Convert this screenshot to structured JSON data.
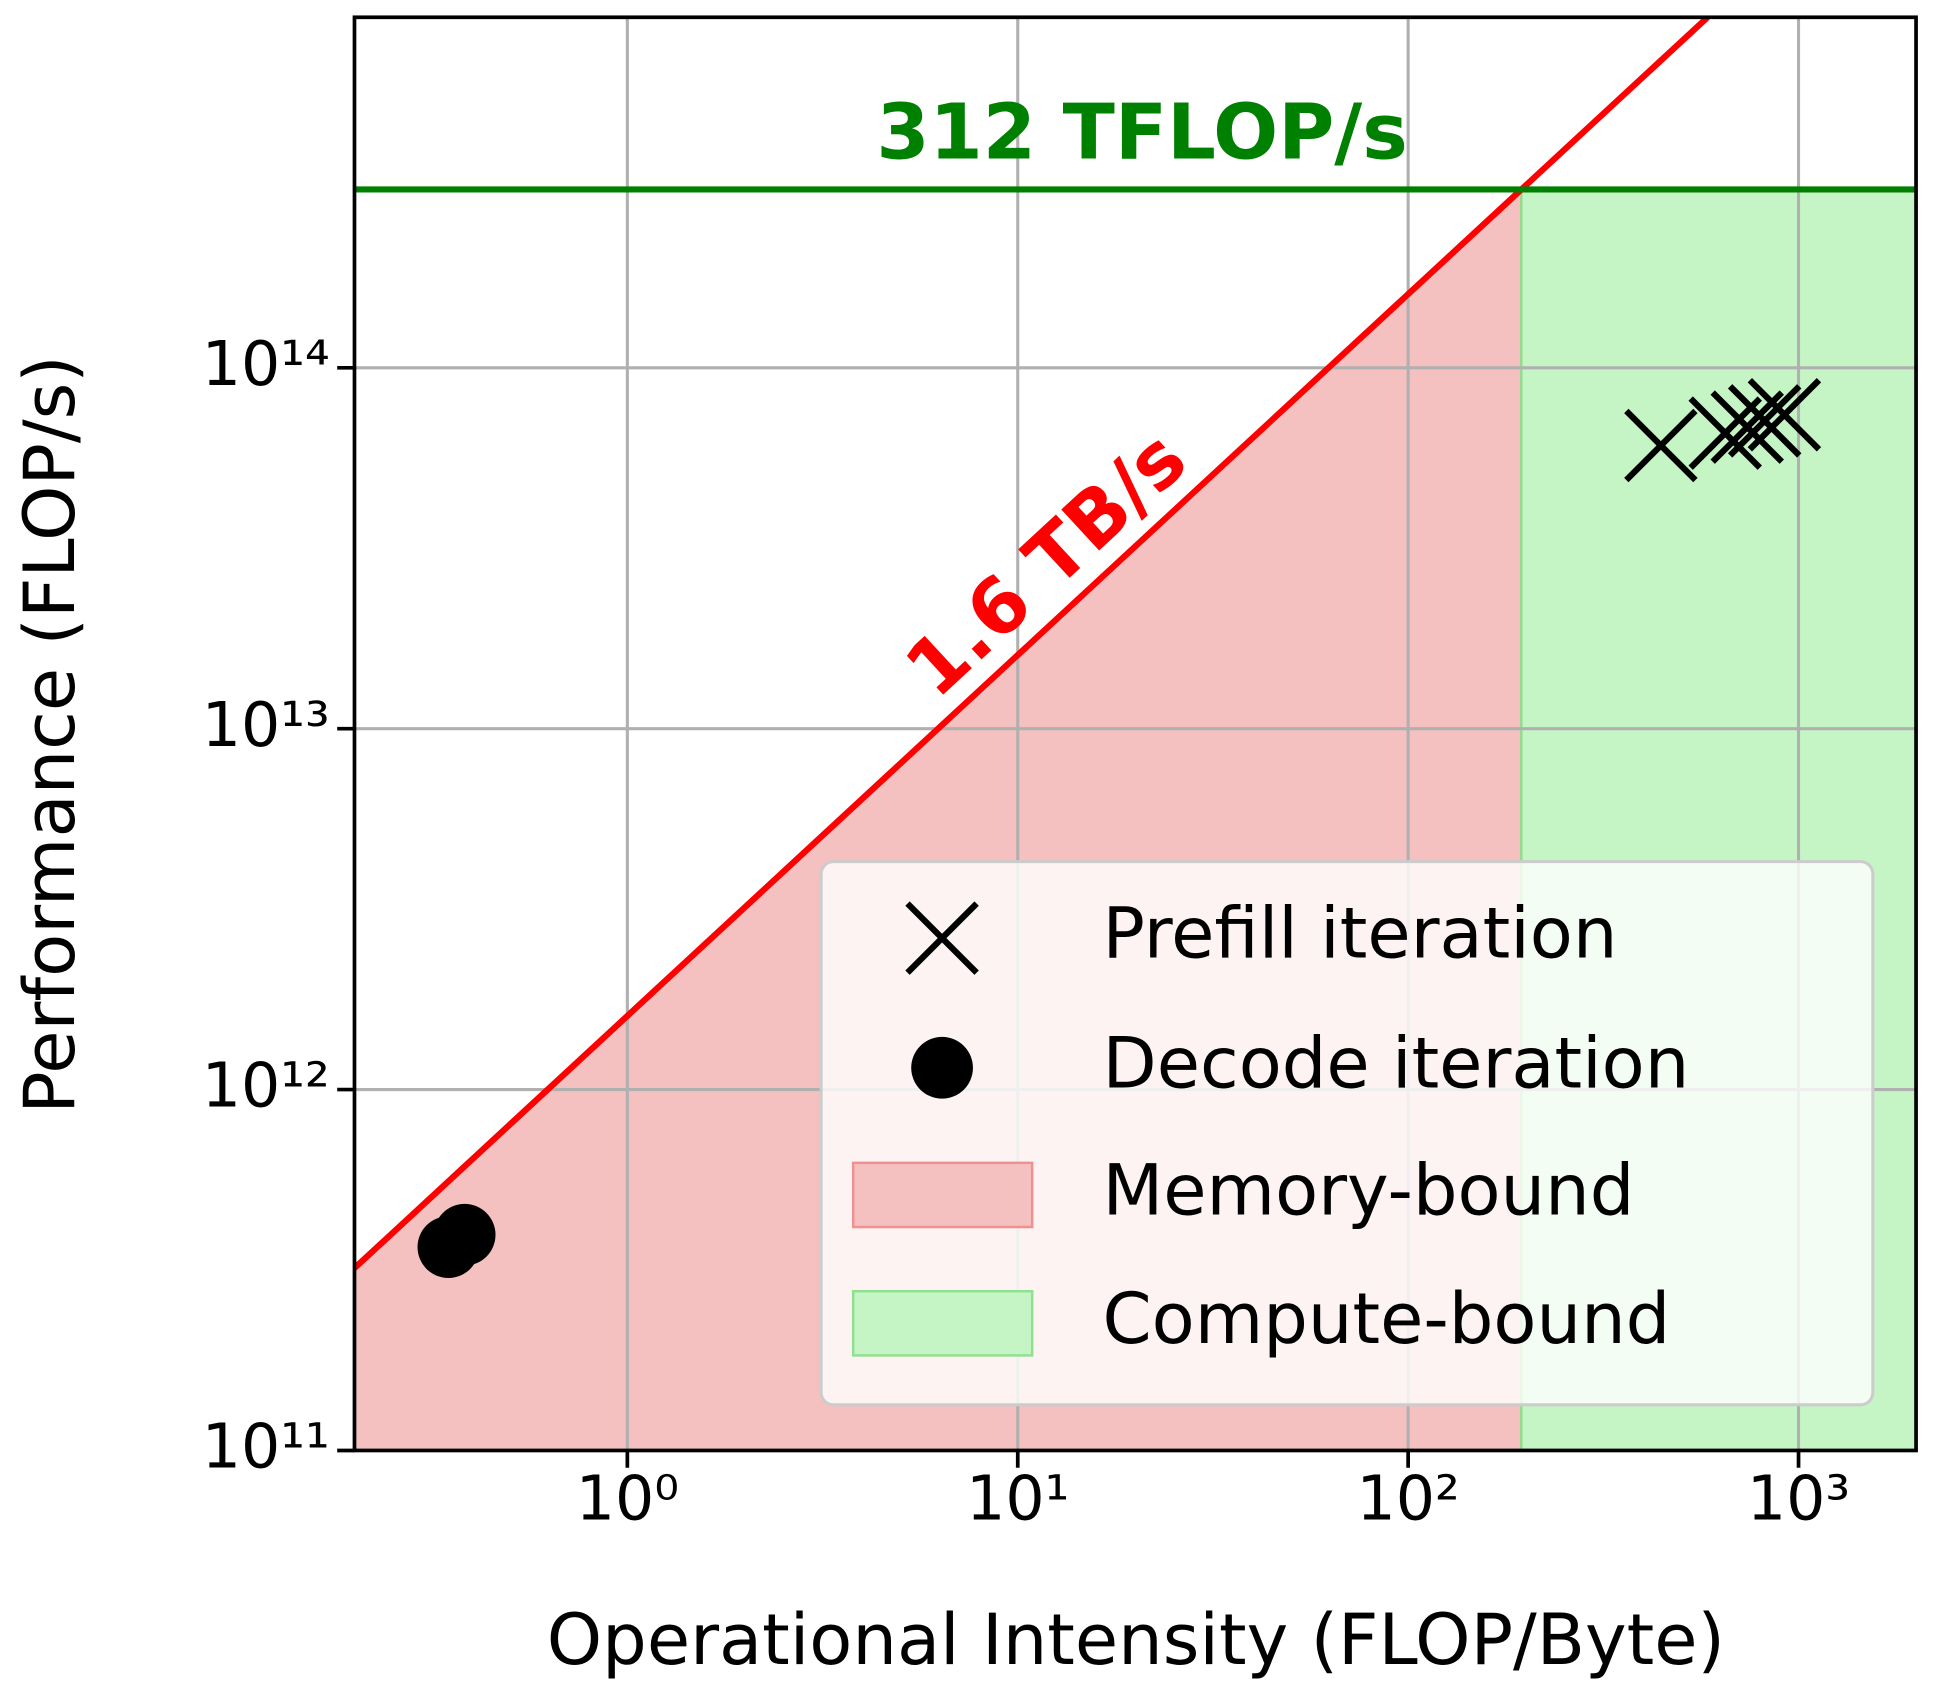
{
  "chart_data": {
    "type": "scatter",
    "xlabel": "Operational Intensity (FLOP/Byte)",
    "ylabel": "Performance (FLOP/s)",
    "log_x": true,
    "log_y": true,
    "grid": true,
    "legend": "lower right",
    "xlim": [
      0.2,
      2000
    ],
    "ylim": [
      100000000000.0,
      936000000000000.0
    ],
    "xticks": [
      {
        "value": 1,
        "label": "10⁰"
      },
      {
        "value": 10,
        "label": "10¹"
      },
      {
        "value": 100,
        "label": "10²"
      },
      {
        "value": 1000,
        "label": "10³"
      }
    ],
    "yticks": [
      {
        "value": 100000000000.0,
        "label": "10¹¹"
      },
      {
        "value": 1000000000000.0,
        "label": "10¹²"
      },
      {
        "value": 10000000000000.0,
        "label": "10¹³"
      },
      {
        "value": 100000000000000.0,
        "label": "10¹⁴"
      }
    ],
    "series": [
      {
        "name": "Prefill iteration",
        "marker": "x",
        "color": "#000000",
        "x": [
          444,
          649,
          739,
          819,
          920
        ],
        "values": [
          60900000000000.0,
          65900000000000.0,
          68500000000000.0,
          71300000000000.0,
          74100000000000.0
        ]
      },
      {
        "name": "Decode iteration",
        "marker": "o",
        "color": "#000000",
        "x": [
          0.348,
          0.383
        ],
        "values": [
          366000000000.0,
          396000000000.0
        ]
      }
    ],
    "roofline": {
      "bandwidth": 1600000000000.0,
      "bandwidth_label": "1.6 TB/s",
      "bandwidth_color": "#ff0000",
      "peak": 312000000000000.0,
      "peak_label": "312 TFLOP/s",
      "peak_color": "#008000"
    },
    "regions": [
      {
        "name": "Memory-bound",
        "color": "#f4c0c0",
        "edge": "#f09090"
      },
      {
        "name": "Compute-bound",
        "color": "#c5f5c5",
        "edge": "#90e090"
      }
    ]
  }
}
